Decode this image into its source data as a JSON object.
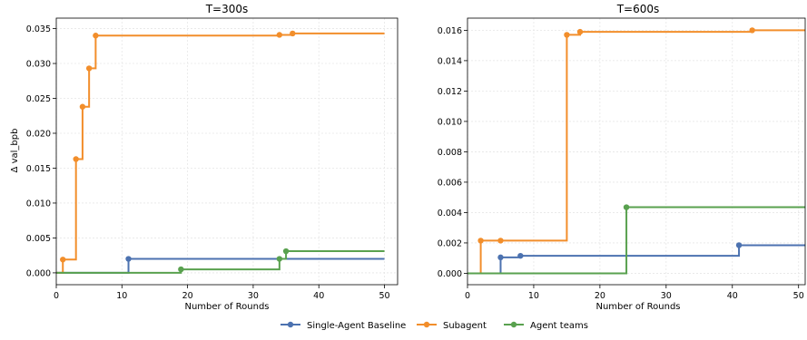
{
  "chart_data": [
    {
      "type": "line",
      "step": "post",
      "title": "T=300s",
      "xlabel": "Number of Rounds",
      "ylabel": "Δ val_bpb",
      "xlim": [
        0,
        52
      ],
      "ylim": [
        -0.0017,
        0.0365
      ],
      "xticks": [
        0,
        10,
        20,
        30,
        40,
        50
      ],
      "xtick_labels": [
        "0",
        "10",
        "20",
        "30",
        "40",
        "50"
      ],
      "yticks": [
        0,
        0.005,
        0.01,
        0.015,
        0.02,
        0.025,
        0.03,
        0.035
      ],
      "ytick_labels": [
        "0.000",
        "0.005",
        "0.010",
        "0.015",
        "0.020",
        "0.025",
        "0.030",
        "0.035"
      ],
      "grid": true,
      "series": [
        {
          "name": "Single-Agent Baseline",
          "color": "#4c72b0",
          "steps": [
            [
              0,
              0
            ],
            [
              11,
              0.002
            ],
            [
              50,
              0.002
            ]
          ],
          "markers": [
            [
              11,
              0.002
            ]
          ]
        },
        {
          "name": "Subagent",
          "color": "#f28e2b",
          "steps": [
            [
              0,
              0
            ],
            [
              1,
              0.0019
            ],
            [
              3,
              0.0163
            ],
            [
              4,
              0.0238
            ],
            [
              5,
              0.0293
            ],
            [
              6,
              0.034
            ],
            [
              34,
              0.0341
            ],
            [
              36,
              0.0343
            ],
            [
              50,
              0.0343
            ]
          ],
          "markers": [
            [
              1,
              0.0019
            ],
            [
              3,
              0.0163
            ],
            [
              4,
              0.0238
            ],
            [
              5,
              0.0293
            ],
            [
              6,
              0.034
            ],
            [
              34,
              0.0341
            ],
            [
              36,
              0.0343
            ]
          ]
        },
        {
          "name": "Agent teams",
          "color": "#59a14f",
          "steps": [
            [
              0,
              0
            ],
            [
              19,
              0.0005
            ],
            [
              34,
              0.002
            ],
            [
              35,
              0.0031
            ],
            [
              50,
              0.0031
            ]
          ],
          "markers": [
            [
              19,
              0.0005
            ],
            [
              34,
              0.002
            ],
            [
              35,
              0.0031
            ]
          ]
        }
      ]
    },
    {
      "type": "line",
      "step": "post",
      "title": "T=600s",
      "xlabel": "Number of Rounds",
      "ylabel": "",
      "xlim": [
        0,
        51
      ],
      "ylim": [
        -0.00075,
        0.0168
      ],
      "xticks": [
        0,
        10,
        20,
        30,
        40,
        50
      ],
      "xtick_labels": [
        "0",
        "10",
        "20",
        "30",
        "40",
        "50"
      ],
      "yticks": [
        0,
        0.002,
        0.004,
        0.006,
        0.008,
        0.01,
        0.012,
        0.014,
        0.016
      ],
      "ytick_labels": [
        "0.000",
        "0.002",
        "0.004",
        "0.006",
        "0.008",
        "0.010",
        "0.012",
        "0.014",
        "0.016"
      ],
      "grid": true,
      "series": [
        {
          "name": "Single-Agent Baseline",
          "color": "#4c72b0",
          "steps": [
            [
              0,
              0
            ],
            [
              5,
              0.00105
            ],
            [
              8,
              0.00115
            ],
            [
              41,
              0.00185
            ],
            [
              51,
              0.00185
            ]
          ],
          "markers": [
            [
              5,
              0.00105
            ],
            [
              8,
              0.00115
            ],
            [
              41,
              0.00185
            ]
          ]
        },
        {
          "name": "Subagent",
          "color": "#f28e2b",
          "steps": [
            [
              0,
              0
            ],
            [
              2,
              0.00215
            ],
            [
              5,
              0.00215
            ],
            [
              15,
              0.0157
            ],
            [
              17,
              0.0159
            ],
            [
              43,
              0.016
            ],
            [
              51,
              0.016
            ]
          ],
          "markers": [
            [
              2,
              0.00215
            ],
            [
              5,
              0.00215
            ],
            [
              15,
              0.0157
            ],
            [
              17,
              0.0159
            ],
            [
              43,
              0.016
            ]
          ]
        },
        {
          "name": "Agent teams",
          "color": "#59a14f",
          "steps": [
            [
              0,
              0
            ],
            [
              24,
              0.00435
            ],
            [
              51,
              0.00435
            ]
          ],
          "markers": [
            [
              24,
              0.00435
            ]
          ]
        }
      ]
    }
  ],
  "legend": {
    "placement": "bottom-center",
    "items": [
      {
        "label": "Single-Agent Baseline",
        "color": "#4c72b0"
      },
      {
        "label": "Subagent",
        "color": "#f28e2b"
      },
      {
        "label": "Agent teams",
        "color": "#59a14f"
      }
    ]
  }
}
